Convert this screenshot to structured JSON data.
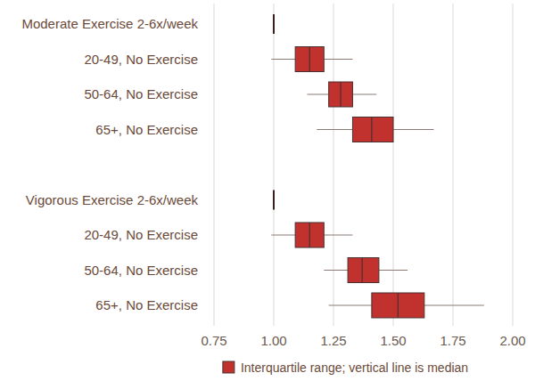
{
  "chart_data": {
    "type": "box",
    "orientation": "horizontal",
    "categories": [
      "Moderate Exercise 2-6x/week",
      "20-49, No Exercise",
      "50-64, No Exercise",
      "65+, No Exercise",
      "Vigorous Exercise 2-6x/week",
      "20-49, No Exercise",
      "50-64, No Exercise",
      "65+, No Exercise"
    ],
    "boxes": [
      {
        "median": 1
      },
      {
        "min": 0.99,
        "q1": 1.09,
        "median": 1.15,
        "q3": 1.21,
        "max": 1.33
      },
      {
        "min": 1.14,
        "q1": 1.23,
        "median": 1.28,
        "q3": 1.33,
        "max": 1.43
      },
      {
        "min": 1.18,
        "q1": 1.33,
        "median": 1.41,
        "q3": 1.5,
        "max": 1.67
      },
      {
        "median": 1
      },
      {
        "min": 0.99,
        "q1": 1.09,
        "median": 1.15,
        "q3": 1.21,
        "max": 1.33
      },
      {
        "min": 1.21,
        "q1": 1.31,
        "median": 1.37,
        "q3": 1.44,
        "max": 1.56
      },
      {
        "min": 1.23,
        "q1": 1.41,
        "median": 1.52,
        "q3": 1.63,
        "max": 1.88
      }
    ],
    "color": "#c1312e",
    "xlim": [
      0.75,
      2.0
    ],
    "xticks": [
      {
        "value": 0.75,
        "label": "0.75"
      },
      {
        "value": 1,
        "label": "1.00"
      },
      {
        "value": 1.25,
        "label": "1.25"
      },
      {
        "value": 1.5,
        "label": "1.50"
      },
      {
        "value": 1.75,
        "label": "1.75"
      },
      {
        "value": 2,
        "label": "2.00"
      }
    ],
    "grid": true,
    "legend": "bottom",
    "legend_text": "Interquartile range; vertical line is median"
  }
}
